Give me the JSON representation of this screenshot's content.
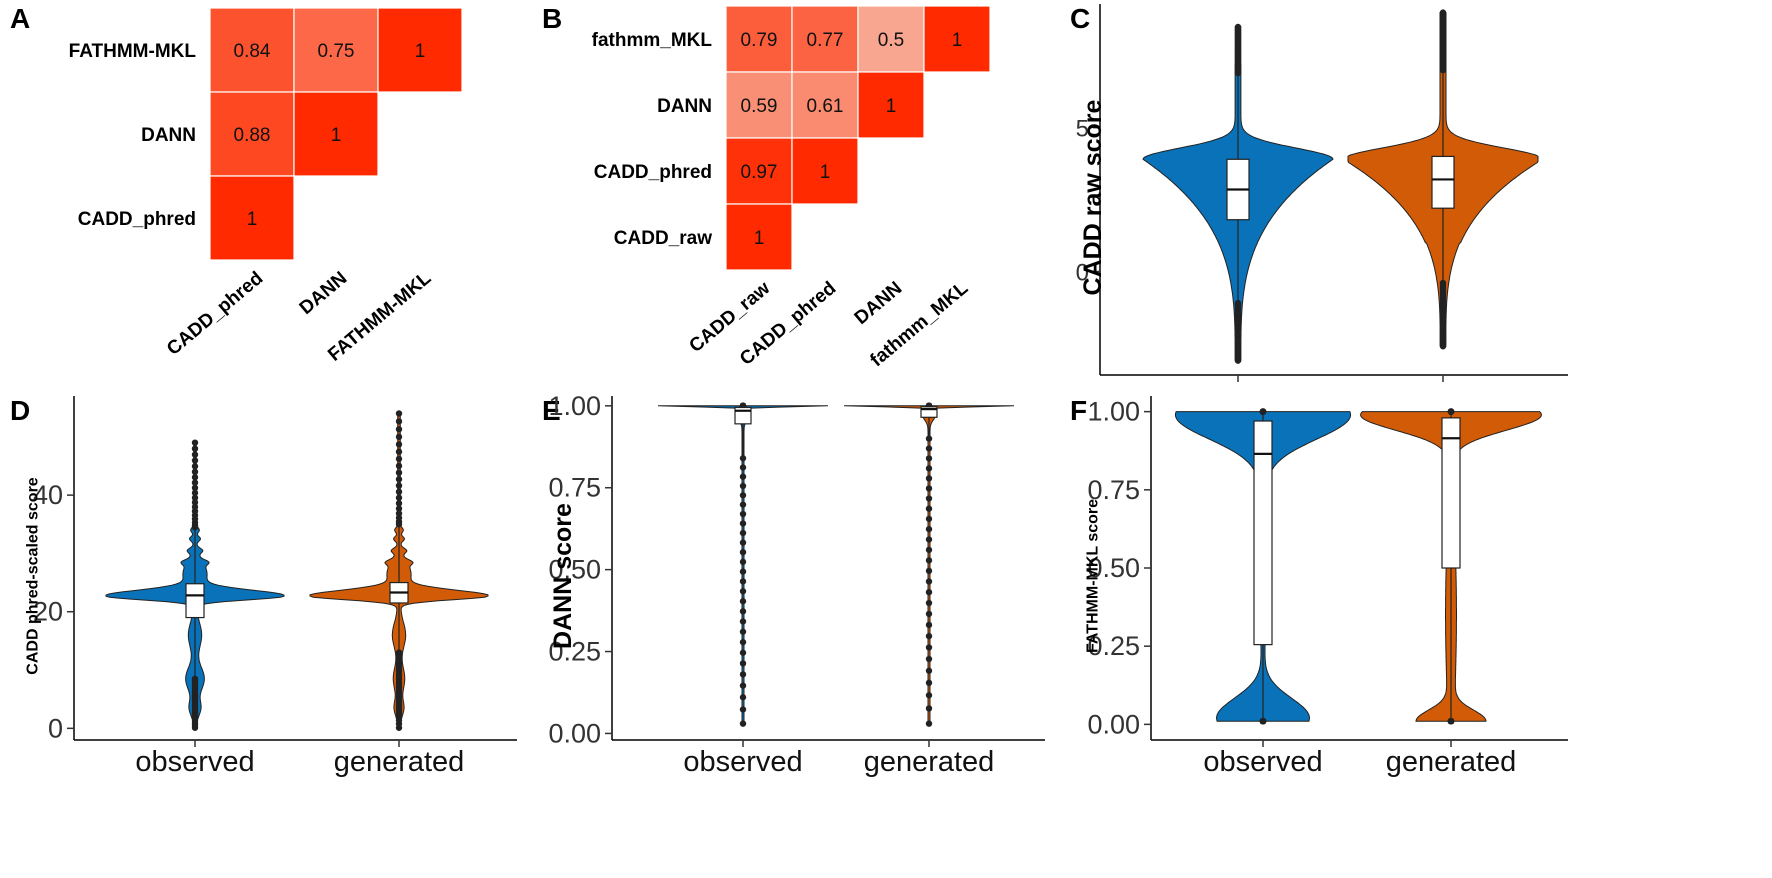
{
  "colors": {
    "observed": "#0972B8",
    "generated": "#D15B07",
    "heat_low": "#F8A68F",
    "heat_high": "#FF2A00"
  },
  "panels": {
    "A": "A",
    "B": "B",
    "C": "C",
    "D": "D",
    "E": "E",
    "F": "F"
  },
  "chart_data": [
    {
      "id": "A",
      "type": "heatmap",
      "title": "",
      "rows": [
        "FATHMM-MKL",
        "DANN",
        "CADD_phred"
      ],
      "columns": [
        "CADD_phred",
        "DANN",
        "FATHMM-MKL"
      ],
      "values": [
        [
          0.84,
          0.75,
          1
        ],
        [
          0.88,
          1,
          null
        ],
        [
          1,
          null,
          null
        ]
      ]
    },
    {
      "id": "B",
      "type": "heatmap",
      "title": "",
      "rows": [
        "fathmm_MKL",
        "DANN",
        "CADD_phred",
        "CADD_raw"
      ],
      "columns": [
        "CADD_raw",
        "CADD_phred",
        "DANN",
        "fathmm_MKL"
      ],
      "values": [
        [
          0.79,
          0.77,
          0.5,
          1
        ],
        [
          0.59,
          0.61,
          1,
          null
        ],
        [
          0.97,
          1,
          null,
          null
        ],
        [
          1,
          null,
          null,
          null
        ]
      ]
    },
    {
      "id": "C",
      "type": "violin",
      "ylabel": "CADD raw score",
      "ylim": [
        -3.6,
        9.3
      ],
      "yticks": [
        0,
        5
      ],
      "ytick_labels": [
        "0",
        "5"
      ],
      "categories": [
        "observed",
        "generated"
      ],
      "show_category_labels": false,
      "series": [
        {
          "name": "observed",
          "min": -3.1,
          "q1": 1.8,
          "median": 2.85,
          "q3": 3.9,
          "max": 8.5,
          "whisker_low": -1.1,
          "whisker_high": 6.9
        },
        {
          "name": "generated",
          "min": -2.6,
          "q1": 2.2,
          "median": 3.2,
          "q3": 4.0,
          "max": 9.0,
          "whisker_low": -0.4,
          "whisker_high": 7.0
        }
      ]
    },
    {
      "id": "D",
      "type": "violin",
      "ylabel": "CADD phred-scaled score",
      "ylim": [
        -2,
        57
      ],
      "yticks": [
        0,
        20,
        40
      ],
      "ytick_labels": [
        "0",
        "20",
        "40"
      ],
      "categories": [
        "observed",
        "generated"
      ],
      "show_category_labels": true,
      "series": [
        {
          "name": "observed",
          "min": 0.1,
          "q1": 19,
          "median": 22.8,
          "q3": 24.8,
          "max": 49,
          "whisker_low": 8.5,
          "whisker_high": 34.5
        },
        {
          "name": "generated",
          "min": 0.1,
          "q1": 21.5,
          "median": 23.3,
          "q3": 25,
          "max": 54,
          "whisker_low": 13,
          "whisker_high": 35
        }
      ]
    },
    {
      "id": "E",
      "type": "violin",
      "ylabel": "DANN score",
      "ylim": [
        -0.02,
        1.03
      ],
      "yticks": [
        0,
        0.25,
        0.5,
        0.75,
        1
      ],
      "ytick_labels": [
        "0.00",
        "0.25",
        "0.50",
        "0.75",
        "1.00"
      ],
      "categories": [
        "observed",
        "generated"
      ],
      "show_category_labels": true,
      "series": [
        {
          "name": "observed",
          "min": 0.03,
          "q1": 0.945,
          "median": 0.985,
          "q3": 0.995,
          "max": 1,
          "whisker_low": 0.84,
          "whisker_high": 1
        },
        {
          "name": "generated",
          "min": 0.03,
          "q1": 0.965,
          "median": 0.99,
          "q3": 0.997,
          "max": 1,
          "whisker_low": 0.9,
          "whisker_high": 1
        }
      ]
    },
    {
      "id": "F",
      "type": "violin",
      "ylabel": "FATHMM-MKL score",
      "ylim": [
        -0.05,
        1.05
      ],
      "yticks": [
        0,
        0.25,
        0.5,
        0.75,
        1
      ],
      "ytick_labels": [
        "0.00",
        "0.25",
        "0.50",
        "0.75",
        "1.00"
      ],
      "categories": [
        "observed",
        "generated"
      ],
      "show_category_labels": true,
      "series": [
        {
          "name": "observed",
          "min": 0.01,
          "q1": 0.255,
          "median": 0.865,
          "q3": 0.97,
          "max": 1,
          "whisker_low": 0.01,
          "whisker_high": 1
        },
        {
          "name": "generated",
          "min": 0.01,
          "q1": 0.5,
          "median": 0.915,
          "q3": 0.98,
          "max": 1,
          "whisker_low": 0.01,
          "whisker_high": 1
        }
      ]
    }
  ]
}
